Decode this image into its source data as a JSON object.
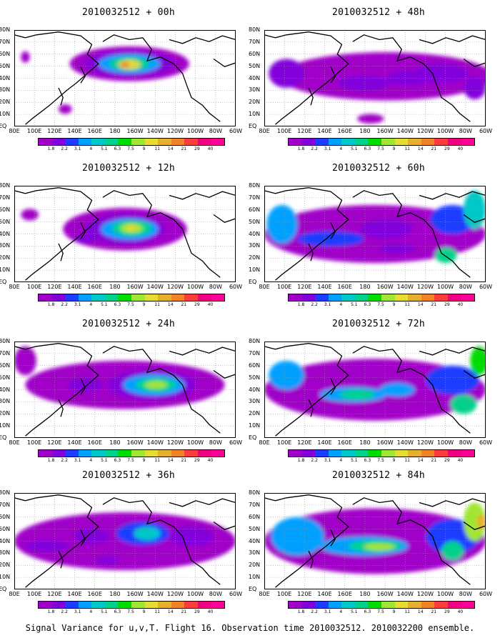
{
  "caption": "Signal Variance for u,v,T. Flight 16. Observation time 2010032512. 2010032200 ensemble.",
  "lat_labels": [
    "80N",
    "70N",
    "60N",
    "50N",
    "40N",
    "30N",
    "20N",
    "10N",
    "EQ"
  ],
  "lon_labels": [
    "80E",
    "100E",
    "120E",
    "140E",
    "160E",
    "180",
    "160W",
    "140W",
    "120W",
    "100W",
    "80W",
    "60W"
  ],
  "colorbar_labels": [
    "1.8",
    "2.2",
    "3.1",
    "4",
    "5.1",
    "6.3",
    "7.5",
    "9",
    "11",
    "14",
    "21",
    "29",
    "40"
  ],
  "colorbar_colors": [
    "#a000c8",
    "#8200dc",
    "#1e3cff",
    "#00a0ff",
    "#00c8c8",
    "#00d28c",
    "#00dc00",
    "#a0e632",
    "#e6dc32",
    "#e6af2d",
    "#f08228",
    "#fa3c3c",
    "#f00082"
  ],
  "panels": [
    {
      "title": "2010032512 + 00h"
    },
    {
      "title": "2010032512 + 48h"
    },
    {
      "title": "2010032512 + 12h"
    },
    {
      "title": "2010032512 + 60h"
    },
    {
      "title": "2010032512 + 24h"
    },
    {
      "title": "2010032512 + 72h"
    },
    {
      "title": "2010032512 + 36h"
    },
    {
      "title": "2010032512 + 84h"
    }
  ]
}
